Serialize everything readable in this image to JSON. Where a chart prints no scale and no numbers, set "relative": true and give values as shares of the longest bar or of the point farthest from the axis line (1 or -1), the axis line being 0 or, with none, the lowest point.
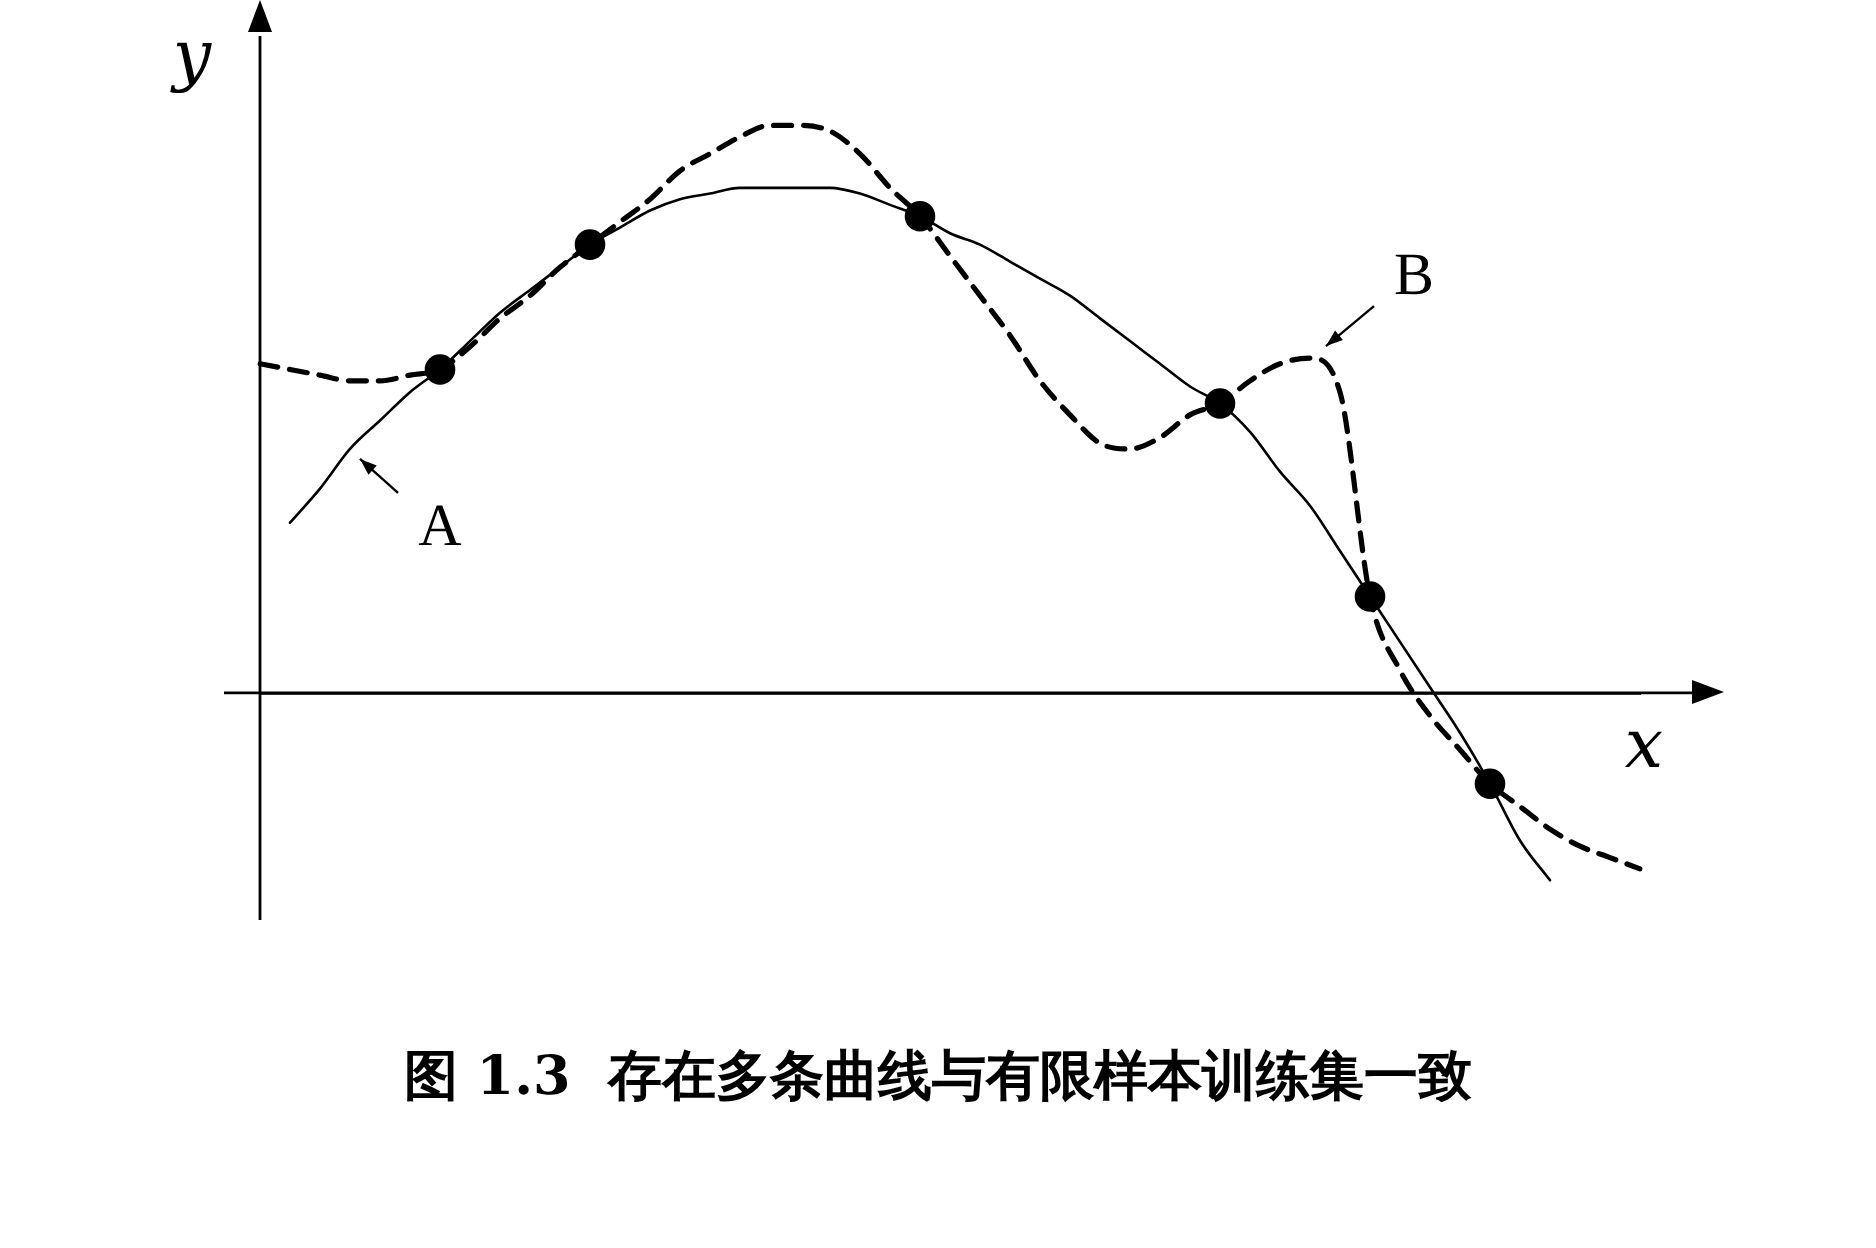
{
  "chart_data": {
    "type": "line",
    "title": "图 1.3  存在多条曲线与有限样本训练集一致",
    "xlabel": "x",
    "ylabel": "y",
    "relative": true,
    "legend": false,
    "grid": false,
    "annotations": [
      "A",
      "B"
    ],
    "categories": [
      null,
      null,
      null,
      null,
      null,
      null,
      null,
      null,
      null,
      null,
      null,
      null,
      null,
      null,
      null,
      null,
      null,
      null,
      null,
      null,
      null,
      null,
      null,
      null,
      null,
      null,
      null,
      null,
      null,
      null,
      null,
      null,
      null,
      null,
      null,
      null,
      null,
      null,
      null,
      null,
      null,
      null,
      null,
      null,
      null,
      null,
      null
    ],
    "series": [
      {
        "color": "#000000",
        "line_style": "solid",
        "marker": "none",
        "values": [
          null,
          0.3,
          0.36,
          0.43,
          0.48,
          0.53,
          0.57,
          0.62,
          0.67,
          0.71,
          0.75,
          0.79,
          0.82,
          0.85,
          0.87,
          0.88,
          0.89,
          0.89,
          0.89,
          0.89,
          0.88,
          0.86,
          0.84,
          0.81,
          0.79,
          0.76,
          0.73,
          0.7,
          0.66,
          0.62,
          0.58,
          0.54,
          0.51,
          0.46,
          0.39,
          0.33,
          0.25,
          0.17,
          0.09,
          0.01,
          -0.07,
          -0.16,
          -0.26,
          -0.33,
          null,
          null,
          null
        ]
      },
      {
        "color": "#000000",
        "line_style": "dashed",
        "marker": "none",
        "values": [
          0.58,
          0.57,
          0.56,
          0.55,
          0.55,
          0.56,
          0.57,
          0.61,
          0.66,
          0.7,
          0.75,
          0.79,
          0.83,
          0.87,
          0.92,
          0.95,
          0.98,
          1.0,
          1.0,
          0.99,
          0.95,
          0.89,
          0.84,
          0.77,
          0.7,
          0.63,
          0.55,
          0.49,
          0.44,
          0.43,
          0.45,
          0.49,
          0.51,
          0.55,
          0.58,
          0.59,
          0.53,
          0.17,
          0.04,
          -0.04,
          -0.1,
          -0.16,
          -0.2,
          -0.24,
          -0.27,
          -0.29,
          -0.31
        ]
      },
      {
        "color": "#000000",
        "line_style": "none",
        "marker": "circle",
        "values": [
          null,
          null,
          null,
          null,
          null,
          null,
          0.57,
          null,
          null,
          null,
          null,
          0.79,
          null,
          null,
          null,
          null,
          null,
          null,
          null,
          null,
          null,
          null,
          0.84,
          null,
          null,
          null,
          null,
          null,
          null,
          null,
          null,
          null,
          0.51,
          null,
          null,
          null,
          null,
          0.17,
          null,
          null,
          null,
          -0.16,
          null,
          null,
          null,
          null,
          null
        ]
      }
    ]
  }
}
